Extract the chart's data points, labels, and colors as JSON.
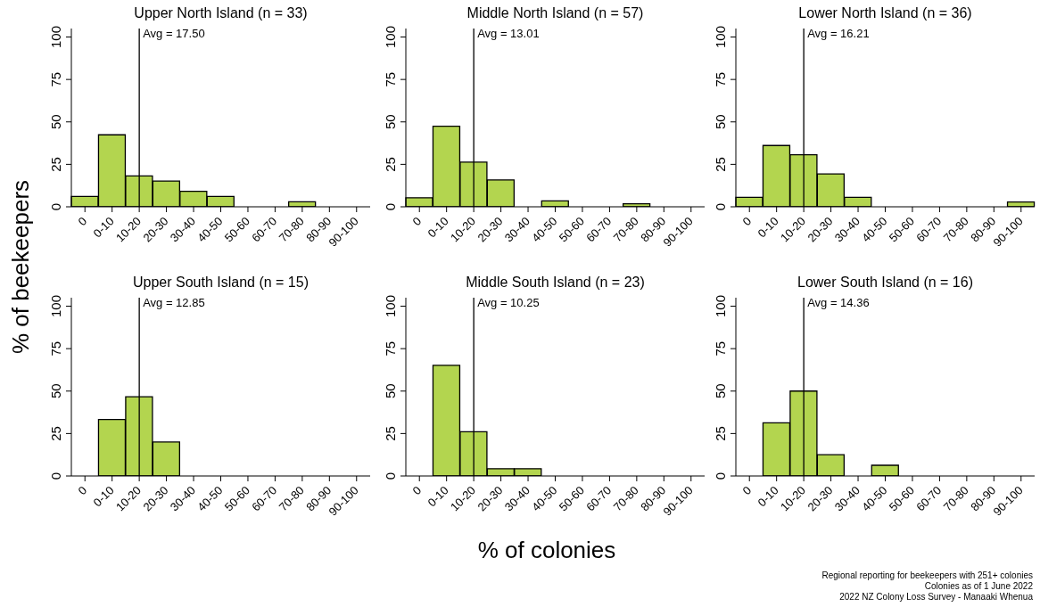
{
  "chart_data": [
    {
      "type": "bar",
      "title": "Upper North Island (n = 33)",
      "ylabel": "% of beekeepers",
      "xlabel": "% of colonies",
      "categories": [
        "0",
        "0-10",
        "10-20",
        "20-30",
        "30-40",
        "40-50",
        "50-60",
        "60-70",
        "70-80",
        "80-90",
        "90-100"
      ],
      "values": [
        6.1,
        42.4,
        18.2,
        15.2,
        9.1,
        6.1,
        0,
        0,
        3.0,
        0,
        0
      ],
      "color": "#b3d54f",
      "ylim": [
        0,
        105
      ],
      "yticks": [
        0,
        25,
        50,
        75,
        100
      ],
      "grid": false,
      "legend": false,
      "ref_lines": [
        {
          "axis": "x",
          "value": "10-20",
          "label": "Avg = 17.50"
        }
      ]
    },
    {
      "type": "bar",
      "title": "Middle North Island (n = 57)",
      "categories": [
        "0",
        "0-10",
        "10-20",
        "20-30",
        "30-40",
        "40-50",
        "50-60",
        "60-70",
        "70-80",
        "80-90",
        "90-100"
      ],
      "values": [
        5.3,
        47.4,
        26.3,
        15.8,
        0,
        3.5,
        0,
        0,
        1.8,
        0,
        0
      ],
      "color": "#b3d54f",
      "ylim": [
        0,
        105
      ],
      "yticks": [
        0,
        25,
        50,
        75,
        100
      ],
      "grid": false,
      "legend": false,
      "ref_lines": [
        {
          "axis": "x",
          "value": "10-20",
          "label": "Avg = 13.01"
        }
      ]
    },
    {
      "type": "bar",
      "title": "Lower North Island (n = 36)",
      "categories": [
        "0",
        "0-10",
        "10-20",
        "20-30",
        "30-40",
        "40-50",
        "50-60",
        "60-70",
        "70-80",
        "80-90",
        "90-100"
      ],
      "values": [
        5.6,
        36.1,
        30.6,
        19.4,
        5.6,
        0,
        0,
        0,
        0,
        0,
        2.8
      ],
      "color": "#b3d54f",
      "ylim": [
        0,
        105
      ],
      "yticks": [
        0,
        25,
        50,
        75,
        100
      ],
      "grid": false,
      "legend": false,
      "ref_lines": [
        {
          "axis": "x",
          "value": "10-20",
          "label": "Avg = 16.21"
        }
      ]
    },
    {
      "type": "bar",
      "title": "Upper South Island (n = 15)",
      "categories": [
        "0",
        "0-10",
        "10-20",
        "20-30",
        "30-40",
        "40-50",
        "50-60",
        "60-70",
        "70-80",
        "80-90",
        "90-100"
      ],
      "values": [
        0,
        33.3,
        46.7,
        20.0,
        0,
        0,
        0,
        0,
        0,
        0,
        0
      ],
      "color": "#b3d54f",
      "ylim": [
        0,
        105
      ],
      "yticks": [
        0,
        25,
        50,
        75,
        100
      ],
      "grid": false,
      "legend": false,
      "ref_lines": [
        {
          "axis": "x",
          "value": "10-20",
          "label": "Avg = 12.85"
        }
      ]
    },
    {
      "type": "bar",
      "title": "Middle South Island (n = 23)",
      "categories": [
        "0",
        "0-10",
        "10-20",
        "20-30",
        "30-40",
        "40-50",
        "50-60",
        "60-70",
        "70-80",
        "80-90",
        "90-100"
      ],
      "values": [
        0,
        65.2,
        26.1,
        4.3,
        4.3,
        0,
        0,
        0,
        0,
        0,
        0
      ],
      "color": "#b3d54f",
      "ylim": [
        0,
        105
      ],
      "yticks": [
        0,
        25,
        50,
        75,
        100
      ],
      "grid": false,
      "legend": false,
      "ref_lines": [
        {
          "axis": "x",
          "value": "10-20",
          "label": "Avg = 10.25"
        }
      ]
    },
    {
      "type": "bar",
      "title": "Lower South Island (n = 16)",
      "categories": [
        "0",
        "0-10",
        "10-20",
        "20-30",
        "30-40",
        "40-50",
        "50-60",
        "60-70",
        "70-80",
        "80-90",
        "90-100"
      ],
      "values": [
        0,
        31.3,
        50.0,
        12.5,
        0,
        6.3,
        0,
        0,
        0,
        0,
        0
      ],
      "color": "#b3d54f",
      "ylim": [
        0,
        105
      ],
      "yticks": [
        0,
        25,
        50,
        75,
        100
      ],
      "grid": false,
      "legend": false,
      "ref_lines": [
        {
          "axis": "x",
          "value": "10-20",
          "label": "Avg = 14.36"
        }
      ],
      "annotations": [
        "Regional reporting for beekeepers with 251+ colonies",
        "Colonies as of 1 June 2022",
        "2022 NZ Colony Loss Survey - Manaaki Whenua"
      ]
    }
  ]
}
